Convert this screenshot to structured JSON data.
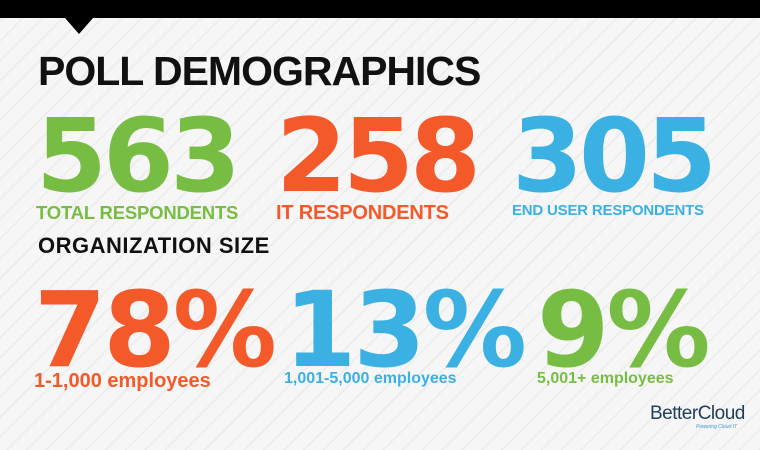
{
  "title": "POLL DEMOGRAPHICS",
  "respondents": [
    {
      "value": "563",
      "label": "TOTAL RESPONDENTS",
      "color": "#78bd43"
    },
    {
      "value": "258",
      "label": "IT RESPONDENTS",
      "color": "#f4592a"
    },
    {
      "value": "305",
      "label": "END USER RESPONDENTS",
      "color": "#3bb0e2"
    }
  ],
  "section_title": "ORGANIZATION SIZE",
  "org_size": [
    {
      "value": "78%",
      "label": "1-1,000 employees",
      "color": "#f4592a"
    },
    {
      "value": "13%",
      "label": "1,001-5,000 employees",
      "color": "#3bb0e2"
    },
    {
      "value": "9%",
      "label": "5,001+ employees",
      "color": "#78bd43"
    }
  ],
  "logo": {
    "name": "BetterCloud",
    "tagline": "Powering Cloud IT"
  }
}
